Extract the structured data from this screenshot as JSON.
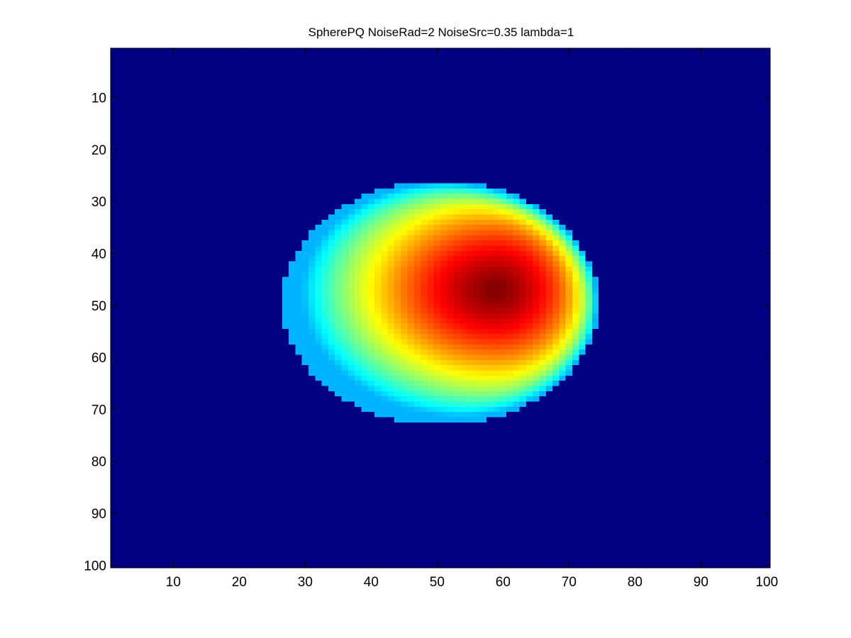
{
  "chart_data": {
    "type": "heatmap",
    "title": "SpherePQ NoiseRad=2 NoiseSrc=0.35 lambda=1",
    "xlabel": "",
    "ylabel": "",
    "colormap": "jet",
    "grid": false,
    "xlim": [
      0.5,
      100.5
    ],
    "ylim": [
      0.5,
      100.5
    ],
    "y_reversed": true,
    "x_ticks": [
      10,
      20,
      30,
      40,
      50,
      60,
      70,
      80,
      90,
      100
    ],
    "y_ticks": [
      10,
      20,
      30,
      40,
      50,
      60,
      70,
      80,
      90,
      100
    ],
    "grid_size": [
      100,
      100
    ],
    "background_value": 0,
    "blob": {
      "shape": "ellipse",
      "center_x": 50.5,
      "center_y": 49.5,
      "radius_x": 24,
      "radius_y": 23.5,
      "edge_value": 0.3,
      "peak": {
        "x": 59,
        "y": 47,
        "value": 1.0
      },
      "profile": "rises from cyan at the rim through yellow/orange on the left to dark red near (59,47); left-side crescent stays cyan-yellow"
    }
  },
  "colors": {
    "background": "#ffffff",
    "axes_background": "#00008f",
    "frame": "#000000"
  }
}
